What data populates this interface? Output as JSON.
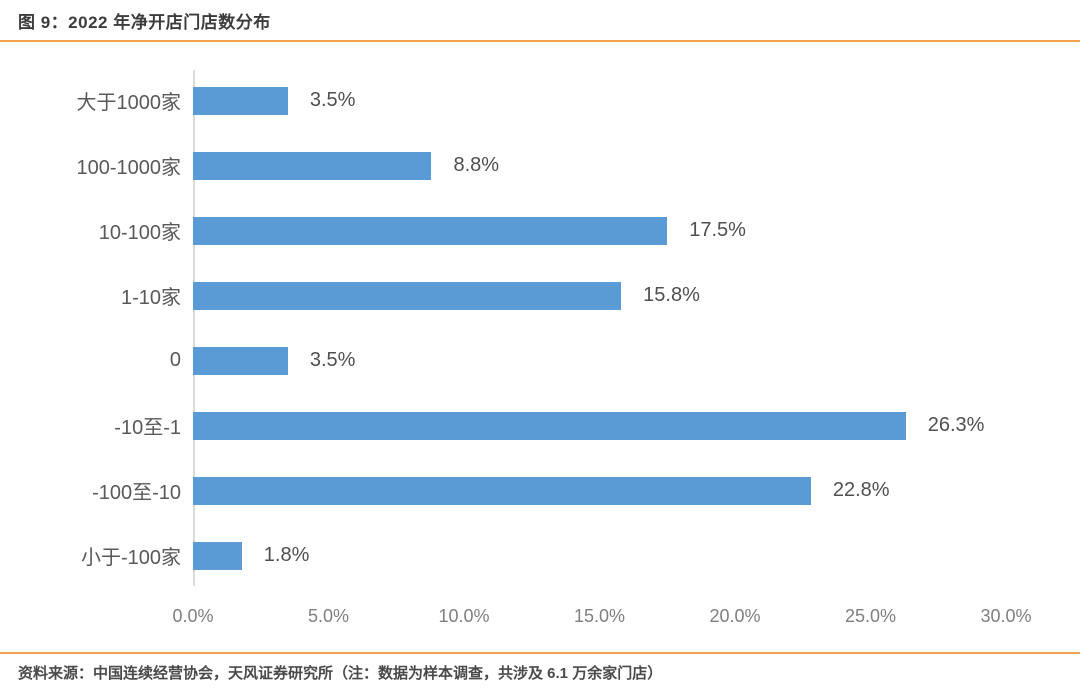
{
  "page": {
    "title": "图 9：2022 年净开店门店数分布",
    "source_note": "资料来源：中国连续经营协会，天风证券研究所（注：数据为样本调查，共涉及 6.1 万余家门店）",
    "accent_color": "#F0A050"
  },
  "chart_data": {
    "type": "bar",
    "orientation": "horizontal",
    "title": "2022 年净开店门店数分布",
    "categories": [
      "大于1000家",
      "100-1000家",
      "10-100家",
      "1-10家",
      "0",
      "-10至-1",
      "-100至-10",
      "小于-100家"
    ],
    "values": [
      3.5,
      8.8,
      17.5,
      15.8,
      3.5,
      26.3,
      22.8,
      1.8
    ],
    "value_labels": [
      "3.5%",
      "8.8%",
      "17.5%",
      "15.8%",
      "3.5%",
      "26.3%",
      "22.8%",
      "1.8%"
    ],
    "x_ticks": [
      "0.0%",
      "5.0%",
      "10.0%",
      "15.0%",
      "20.0%",
      "25.0%",
      "30.0%"
    ],
    "xlabel": "",
    "ylabel": "",
    "xlim": [
      0,
      30
    ],
    "grid": false,
    "legend": false,
    "bar_color": "#5B9BD5",
    "data_label_position": "outside-end"
  }
}
